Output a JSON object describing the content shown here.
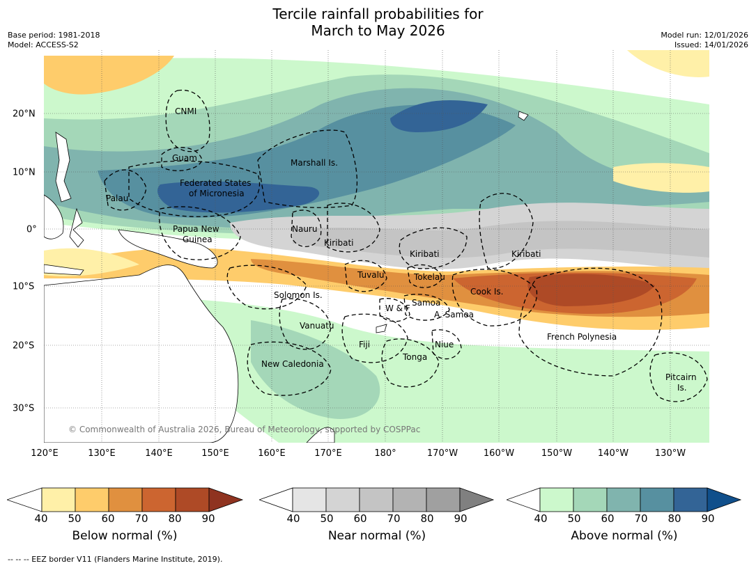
{
  "title_line1": "Tercile rainfall probabilities for",
  "title_line2": "March to May 2026",
  "meta_left": {
    "base_period": "Base period: 1981-2018",
    "model": "Model: ACCESS-S2"
  },
  "meta_right": {
    "model_run": "Model run: 12/01/2026",
    "issued": "Issued: 14/01/2026"
  },
  "copyright": "© Commonwealth of Australia 2026, Bureau of Meteorology, supported by COSPPac",
  "footer": "--  --  -- EEZ border V11 (Flanders Marine Institute, 2019).",
  "axes": {
    "lon_labels": [
      "120°E",
      "130°E",
      "140°E",
      "150°E",
      "160°E",
      "170°E",
      "180°",
      "170°W",
      "160°W",
      "150°W",
      "140°W",
      "130°W"
    ],
    "lat_labels": [
      "20°N",
      "10°N",
      "0°",
      "10°S",
      "20°S",
      "30°S"
    ]
  },
  "regions": [
    {
      "name": "CNMI"
    },
    {
      "name": "Guam"
    },
    {
      "name": "Marshall Is."
    },
    {
      "name": "Federated States"
    },
    {
      "name": "of Micronesia"
    },
    {
      "name": "Palau"
    },
    {
      "name": "Papua New"
    },
    {
      "name": "Guinea"
    },
    {
      "name": "Nauru"
    },
    {
      "name": "Kiribati"
    },
    {
      "name": "Kiribati "
    },
    {
      "name": " Kiribati"
    },
    {
      "name": "Tuvalu"
    },
    {
      "name": "Tokelau"
    },
    {
      "name": "Cook Is."
    },
    {
      "name": "Solomon Is."
    },
    {
      "name": "W & F"
    },
    {
      "name": "Samoa"
    },
    {
      "name": "A. Samoa"
    },
    {
      "name": "Vanuatu"
    },
    {
      "name": "Fiji"
    },
    {
      "name": "Niue"
    },
    {
      "name": "Tonga"
    },
    {
      "name": "French Polynesia"
    },
    {
      "name": "New Caledonia"
    },
    {
      "name": "Pitcairn"
    },
    {
      "name": "Is."
    }
  ],
  "colorbars": [
    {
      "title": "Below normal (%)",
      "ticks": [
        "40",
        "50",
        "60",
        "70",
        "80",
        "90"
      ],
      "colors": [
        "#ffffff",
        "#fff0a8",
        "#fecc6b",
        "#e0903f",
        "#cc6530",
        "#ae4a26",
        "#8f3320"
      ]
    },
    {
      "title": "Near normal (%)",
      "ticks": [
        "40",
        "50",
        "60",
        "70",
        "80",
        "90"
      ],
      "colors": [
        "#ffffff",
        "#e5e5e5",
        "#d4d4d4",
        "#c4c4c4",
        "#b3b3b3",
        "#a0a0a0",
        "#808080"
      ]
    },
    {
      "title": "Above normal (%)",
      "ticks": [
        "40",
        "50",
        "60",
        "70",
        "80",
        "90"
      ],
      "colors": [
        "#ffffff",
        "#ccf8cc",
        "#a4d7b8",
        "#80b4ae",
        "#5790a0",
        "#336496",
        "#104f8b"
      ]
    }
  ],
  "colors": {
    "land": "#ffffff",
    "coast": "#000000",
    "eez": "#000000",
    "grid": "#555555"
  }
}
